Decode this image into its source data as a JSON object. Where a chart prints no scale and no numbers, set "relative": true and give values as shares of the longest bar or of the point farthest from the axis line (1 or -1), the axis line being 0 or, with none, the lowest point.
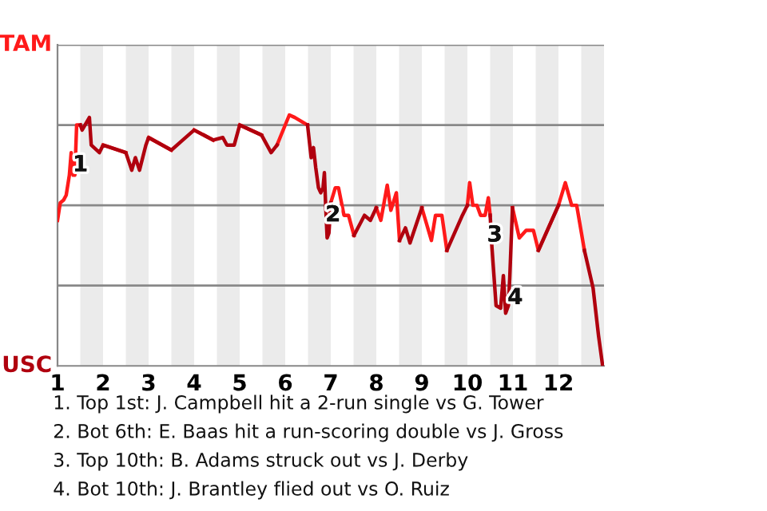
{
  "chart_data": {
    "type": "line",
    "relative": true,
    "x": [
      1.0,
      1.06,
      1.13,
      1.19,
      1.26,
      1.3,
      1.34,
      1.37,
      1.38,
      1.42,
      1.5,
      1.54,
      1.7,
      1.74,
      1.92,
      2.0,
      2.5,
      2.63,
      2.71,
      2.8,
      2.94,
      3.0,
      3.5,
      3.75,
      4.0,
      4.42,
      4.63,
      4.72,
      4.88,
      5.0,
      5.48,
      5.69,
      5.82,
      6.09,
      6.21,
      6.49,
      6.57,
      6.62,
      6.67,
      6.73,
      6.78,
      6.83,
      6.86,
      6.89,
      6.92,
      6.96,
      7.0,
      7.1,
      7.17,
      7.29,
      7.39,
      7.51,
      7.74,
      7.87,
      8.0,
      8.1,
      8.24,
      8.32,
      8.44,
      8.51,
      8.64,
      8.74,
      9.0,
      9.21,
      9.3,
      9.44,
      9.55,
      9.89,
      10.0,
      10.05,
      10.12,
      10.21,
      10.29,
      10.39,
      10.46,
      10.5,
      10.54,
      10.63,
      10.73,
      10.79,
      10.84,
      10.9,
      10.93,
      10.99,
      11.14,
      11.29,
      11.45,
      11.56,
      12.0,
      12.15,
      12.29,
      12.4,
      12.57,
      12.76,
      12.88,
      12.97
    ],
    "series": [
      {
        "color": "#ff1a1a",
        "values": [
          0.58,
          0.65,
          0.66,
          0.68,
          0.76,
          0.85,
          0.76,
          0.82,
          0.76,
          0.96,
          0.96,
          null,
          null,
          null,
          null,
          0.88,
          0.85,
          null,
          null,
          null,
          null,
          0.91,
          0.86,
          null,
          0.94,
          0.9,
          null,
          null,
          null,
          0.96,
          0.92,
          null,
          0.88,
          1,
          0.99,
          0.96,
          null,
          null,
          null,
          null,
          null,
          null,
          null,
          null,
          null,
          null,
          0.65,
          0.71,
          0.71,
          0.6,
          0.6,
          0.52,
          null,
          null,
          0.63,
          0.58,
          0.72,
          0.62,
          0.69,
          0.5,
          null,
          null,
          0.63,
          0.5,
          0.6,
          0.6,
          0.46,
          null,
          0.64,
          0.73,
          0.64,
          0.64,
          0.6,
          0.6,
          0.67,
          0.6,
          null,
          null,
          null,
          null,
          null,
          null,
          null,
          0.63,
          0.51,
          0.54,
          0.54,
          0.46,
          0.64,
          0.73,
          0.64,
          0.64,
          0.46,
          null,
          null,
          null
        ]
      },
      {
        "color": "#b0000e",
        "values": [
          null,
          null,
          null,
          null,
          null,
          null,
          null,
          null,
          null,
          null,
          0.96,
          0.94,
          0.99,
          0.88,
          0.85,
          0.88,
          0.85,
          0.78,
          0.83,
          0.78,
          0.88,
          0.91,
          0.86,
          0.9,
          0.94,
          0.9,
          0.91,
          0.88,
          0.88,
          0.96,
          0.92,
          0.85,
          0.88,
          null,
          null,
          0.96,
          0.83,
          0.87,
          0.79,
          0.71,
          0.69,
          0.71,
          0.77,
          0.63,
          0.51,
          0.53,
          0.65,
          null,
          null,
          null,
          null,
          0.52,
          0.6,
          0.58,
          0.63,
          null,
          null,
          null,
          null,
          0.5,
          0.55,
          0.49,
          0.63,
          null,
          null,
          null,
          0.46,
          0.6,
          0.64,
          null,
          null,
          null,
          null,
          null,
          null,
          0.6,
          0.47,
          0.24,
          0.23,
          0.36,
          0.21,
          0.24,
          0.35,
          0.63,
          null,
          null,
          null,
          0.46,
          0.64,
          null,
          null,
          null,
          0.46,
          0.31,
          0.12,
          0
        ]
      }
    ],
    "xlim": [
      1,
      13
    ],
    "xticks": [
      1,
      2,
      3,
      4,
      5,
      6,
      7,
      8,
      9,
      10,
      11,
      12
    ],
    "grid": "y",
    "marker": "none",
    "line_style": "solid",
    "bands": [
      {
        "axis": "x",
        "from": 1.5,
        "to": 2,
        "color": "#ebebeb"
      },
      {
        "axis": "x",
        "from": 2.5,
        "to": 3,
        "color": "#ebebeb"
      },
      {
        "axis": "x",
        "from": 3.5,
        "to": 4,
        "color": "#ebebeb"
      },
      {
        "axis": "x",
        "from": 4.5,
        "to": 5,
        "color": "#ebebeb"
      },
      {
        "axis": "x",
        "from": 5.5,
        "to": 6,
        "color": "#ebebeb"
      },
      {
        "axis": "x",
        "from": 6.5,
        "to": 7,
        "color": "#ebebeb"
      },
      {
        "axis": "x",
        "from": 7.5,
        "to": 8,
        "color": "#ebebeb"
      },
      {
        "axis": "x",
        "from": 8.5,
        "to": 9,
        "color": "#ebebeb"
      },
      {
        "axis": "x",
        "from": 9.5,
        "to": 10,
        "color": "#ebebeb"
      },
      {
        "axis": "x",
        "from": 10.5,
        "to": 11,
        "color": "#ebebeb"
      },
      {
        "axis": "x",
        "from": 11.5,
        "to": 12,
        "color": "#ebebeb"
      },
      {
        "axis": "x",
        "from": 12.5,
        "to": 13,
        "color": "#ebebeb"
      }
    ],
    "annotations": [
      "TAM",
      "USC",
      {
        "text": "1",
        "x": 1.5,
        "y": 0.8
      },
      {
        "text": "2",
        "x": 7.05,
        "y": 0.6
      },
      {
        "text": "3",
        "x": 10.6,
        "y": 0.52
      },
      {
        "text": "4",
        "x": 11.05,
        "y": 0.27
      },
      "1. Top 1st: J. Campbell hit a 2-run single vs G. Tower",
      "2. Bot 6th: E. Baas hit a run-scoring double vs J. Gross",
      "3. Top 10th: B. Adams struck out vs J. Derby",
      "4. Bot 10th: J. Brantley flied out vs O. Ruiz"
    ]
  }
}
